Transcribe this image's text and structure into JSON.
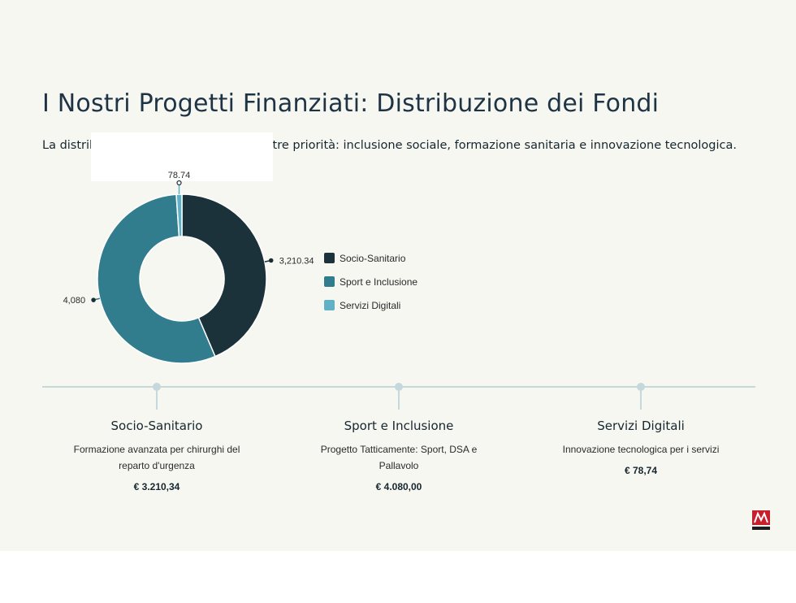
{
  "header": {
    "title": "I Nostri Progetti Finanziati: Distribuzione dei Fondi",
    "subtitle": "La distribuzione dei fondi riflette le nostre priorità: inclusione sociale, formazione sanitaria e innovazione tecnologica."
  },
  "chart_data": {
    "type": "pie",
    "donut": true,
    "categories": [
      "Socio-Sanitario",
      "Sport e Inclusione",
      "Servizi Digitali"
    ],
    "values": [
      3210.34,
      4080,
      78.74
    ],
    "data_labels": [
      "3,210.34",
      "4,080",
      "78.74"
    ],
    "colors": [
      "#1b323b",
      "#327d8d",
      "#5fb2c5"
    ],
    "legend_position": "right"
  },
  "legend": {
    "items": [
      {
        "label": "Socio-Sanitario",
        "color": "#1b323b"
      },
      {
        "label": "Sport e Inclusione",
        "color": "#327d8d"
      },
      {
        "label": "Servizi Digitali",
        "color": "#5fb2c5"
      }
    ]
  },
  "projects": [
    {
      "title": "Socio-Sanitario",
      "desc_line1": "Formazione avanzata per chirurghi del",
      "desc_line2": "reparto d'urgenza",
      "amount": "€ 3.210,34"
    },
    {
      "title": "Sport e Inclusione",
      "desc_line1": "Progetto Tatticamente: Sport, DSA e",
      "desc_line2": "Pallavolo",
      "amount": "€ 4.080,00"
    },
    {
      "title": "Servizi Digitali",
      "desc_line1": "Innovazione tecnologica per i servizi",
      "desc_line2": "",
      "amount": "€ 78,74"
    }
  ],
  "logo": {
    "text": "MOSAICO",
    "color": "#c8202a"
  }
}
